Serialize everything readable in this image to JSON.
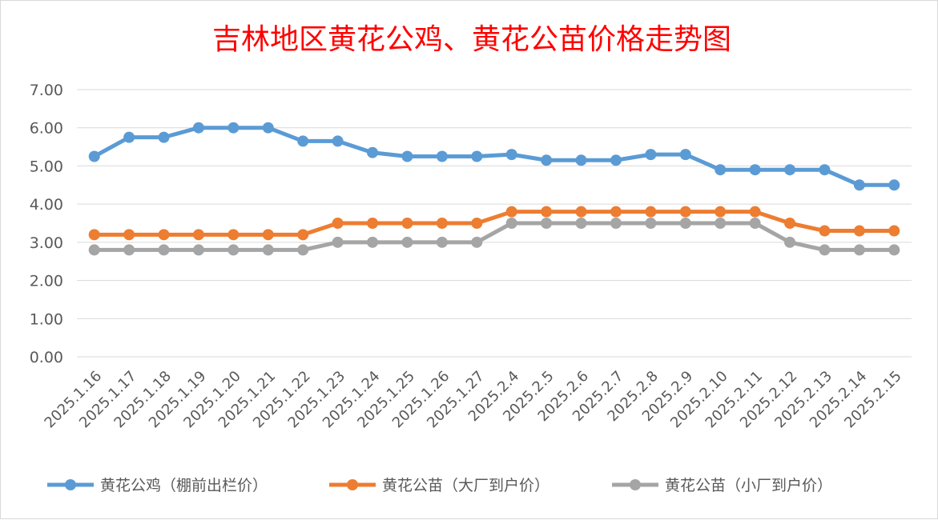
{
  "chart_data": {
    "type": "line",
    "title": "吉林地区黄花公鸡、黄花公苗价格走势图",
    "xlabel": "",
    "ylabel": "",
    "ylim": [
      0,
      7
    ],
    "yticks": [
      "0.00",
      "1.00",
      "2.00",
      "3.00",
      "4.00",
      "5.00",
      "6.00",
      "7.00"
    ],
    "grid": true,
    "legend_position": "bottom",
    "categories": [
      "2025.1.16",
      "2025.1.17",
      "2025.1.18",
      "2025.1.19",
      "2025.1.20",
      "2025.1.21",
      "2025.1.22",
      "2025.1.23",
      "2025.1.24",
      "2025.1.25",
      "2025.1.26",
      "2025.1.27",
      "2025.2.4",
      "2025.2.5",
      "2025.2.6",
      "2025.2.7",
      "2025.2.8",
      "2025.2.9",
      "2025.2.10",
      "2025.2.11",
      "2025.2.12",
      "2025.2.13",
      "2025.2.14",
      "2025.2.15"
    ],
    "series": [
      {
        "name": "黄花公鸡（棚前出栏价）",
        "color": "#5b9bd5",
        "values": [
          5.25,
          5.75,
          5.75,
          6.0,
          6.0,
          6.0,
          5.65,
          5.65,
          5.35,
          5.25,
          5.25,
          5.25,
          5.3,
          5.15,
          5.15,
          5.15,
          5.3,
          5.3,
          4.9,
          4.9,
          4.9,
          4.9,
          4.5,
          4.5
        ]
      },
      {
        "name": "黄花公苗（大厂到户价）",
        "color": "#ed7d31",
        "values": [
          3.2,
          3.2,
          3.2,
          3.2,
          3.2,
          3.2,
          3.2,
          3.5,
          3.5,
          3.5,
          3.5,
          3.5,
          3.8,
          3.8,
          3.8,
          3.8,
          3.8,
          3.8,
          3.8,
          3.8,
          3.5,
          3.3,
          3.3,
          3.3
        ]
      },
      {
        "name": "黄花公苗（小厂到户价）",
        "color": "#a5a5a5",
        "values": [
          2.8,
          2.8,
          2.8,
          2.8,
          2.8,
          2.8,
          2.8,
          3.0,
          3.0,
          3.0,
          3.0,
          3.0,
          3.5,
          3.5,
          3.5,
          3.5,
          3.5,
          3.5,
          3.5,
          3.5,
          3.0,
          2.8,
          2.8,
          2.8
        ]
      }
    ]
  }
}
